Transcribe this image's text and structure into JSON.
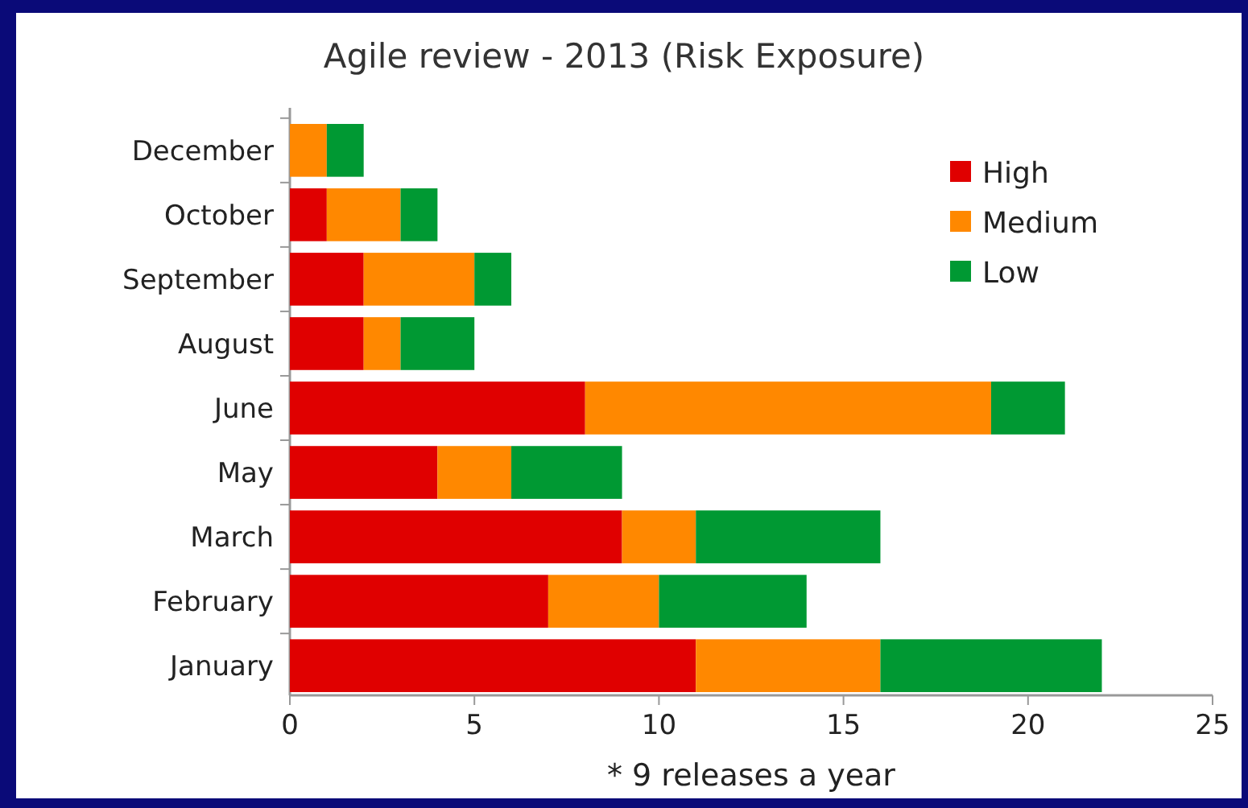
{
  "chart_data": {
    "type": "bar",
    "orientation": "horizontal",
    "stacked": true,
    "title": "Agile review - 2013 (Risk Exposure)",
    "xlabel": "* 9 releases a year",
    "categories": [
      "December",
      "October",
      "September",
      "August",
      "June",
      "May",
      "March",
      "February",
      "January"
    ],
    "series": [
      {
        "name": "High",
        "color": "#e00000",
        "values": [
          0,
          1,
          2,
          2,
          8,
          4,
          9,
          7,
          11
        ]
      },
      {
        "name": "Medium",
        "color": "#ff8800",
        "values": [
          1,
          2,
          3,
          1,
          11,
          2,
          2,
          3,
          5
        ]
      },
      {
        "name": "Low",
        "color": "#009933",
        "values": [
          1,
          1,
          1,
          2,
          2,
          3,
          5,
          4,
          6
        ]
      }
    ],
    "xlim": [
      0,
      25
    ],
    "xticks": [
      0,
      5,
      10,
      15,
      20,
      25
    ],
    "grid": false,
    "legend": "top right"
  }
}
